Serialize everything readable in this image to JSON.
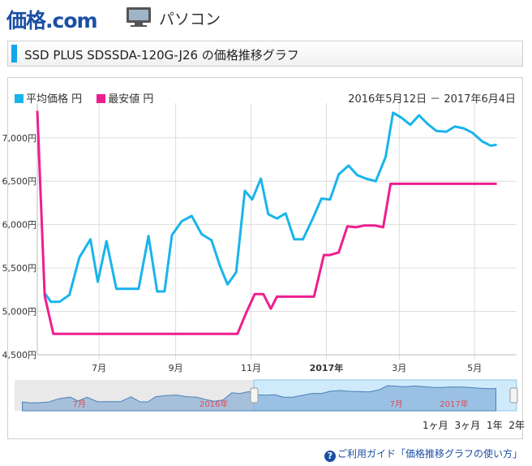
{
  "header": {
    "logo_main": "価格",
    "logo_dot": ".com",
    "category": "パソコン",
    "pc_icon": "monitor-icon"
  },
  "page_title": "SSD PLUS SDSSDA-120G-J26 の価格推移グラフ",
  "colors": {
    "avg": "#19b4ec",
    "min": "#ee1e8f",
    "accent": "#13a6e8"
  },
  "legend": {
    "avg": "平均価格 円",
    "min": "最安値 円"
  },
  "date_range": "2016年5月12日 － 2017年6月4日",
  "range_buttons": [
    "1ヶ月",
    "3ヶ月",
    "1年",
    "2年"
  ],
  "guide_link": "ご利用ガイド「価格推移グラフの使い方」",
  "navigator": {
    "label_month": "7月",
    "label_year": "2016年",
    "label_month2": "7月",
    "label_year2": "2017年"
  },
  "chart_data": {
    "type": "line",
    "x_unit": "days since 2016-05-12",
    "xlim": [
      0,
      388
    ],
    "ylim": [
      4500,
      7400
    ],
    "yticks": [
      4500,
      5000,
      5500,
      6000,
      6500,
      7000
    ],
    "ytick_labels": [
      "4,500円",
      "5,000円",
      "5,500円",
      "6,000円",
      "6,500円",
      "7,000円"
    ],
    "xticks": [
      {
        "x": 50,
        "label": "7月",
        "bold": false
      },
      {
        "x": 112,
        "label": "9月",
        "bold": false
      },
      {
        "x": 173,
        "label": "11月",
        "bold": false
      },
      {
        "x": 234,
        "label": "2017年",
        "bold": true
      },
      {
        "x": 293,
        "label": "3月",
        "bold": false
      },
      {
        "x": 354,
        "label": "5月",
        "bold": false
      }
    ],
    "grid": true,
    "legend": "top-left",
    "series": [
      {
        "name": "平均価格 円",
        "points": [
          [
            6,
            5210
          ],
          [
            11,
            5110
          ],
          [
            18,
            5110
          ],
          [
            26,
            5190
          ],
          [
            34,
            5620
          ],
          [
            43,
            5830
          ],
          [
            49,
            5340
          ],
          [
            56,
            5810
          ],
          [
            64,
            5260
          ],
          [
            72,
            5260
          ],
          [
            82,
            5260
          ],
          [
            90,
            5870
          ],
          [
            97,
            5230
          ],
          [
            103,
            5230
          ],
          [
            109,
            5880
          ],
          [
            117,
            6040
          ],
          [
            125,
            6100
          ],
          [
            133,
            5890
          ],
          [
            141,
            5820
          ],
          [
            148,
            5520
          ],
          [
            154,
            5310
          ],
          [
            161,
            5450
          ],
          [
            168,
            6390
          ],
          [
            174,
            6290
          ],
          [
            181,
            6530
          ],
          [
            187,
            6120
          ],
          [
            194,
            6070
          ],
          [
            201,
            6130
          ],
          [
            208,
            5830
          ],
          [
            215,
            5830
          ],
          [
            223,
            6070
          ],
          [
            230,
            6300
          ],
          [
            237,
            6290
          ],
          [
            244,
            6580
          ],
          [
            252,
            6680
          ],
          [
            259,
            6570
          ],
          [
            266,
            6530
          ],
          [
            274,
            6500
          ],
          [
            282,
            6780
          ],
          [
            288,
            7290
          ],
          [
            295,
            7230
          ],
          [
            302,
            7150
          ],
          [
            309,
            7260
          ],
          [
            316,
            7160
          ],
          [
            323,
            7080
          ],
          [
            331,
            7070
          ],
          [
            338,
            7130
          ],
          [
            345,
            7110
          ],
          [
            352,
            7060
          ],
          [
            360,
            6960
          ],
          [
            367,
            6910
          ],
          [
            372,
            6920
          ]
        ]
      },
      {
        "name": "最安値 円",
        "points": [
          [
            0,
            7310
          ],
          [
            6,
            5180
          ],
          [
            13,
            4740
          ],
          [
            162,
            4740
          ],
          [
            169,
            4980
          ],
          [
            176,
            5200
          ],
          [
            183,
            5200
          ],
          [
            189,
            5030
          ],
          [
            194,
            5170
          ],
          [
            224,
            5170
          ],
          [
            232,
            5650
          ],
          [
            237,
            5650
          ],
          [
            244,
            5680
          ],
          [
            251,
            5980
          ],
          [
            258,
            5970
          ],
          [
            265,
            5990
          ],
          [
            273,
            5990
          ],
          [
            280,
            5970
          ],
          [
            286,
            6470
          ],
          [
            372,
            6470
          ]
        ]
      }
    ]
  }
}
